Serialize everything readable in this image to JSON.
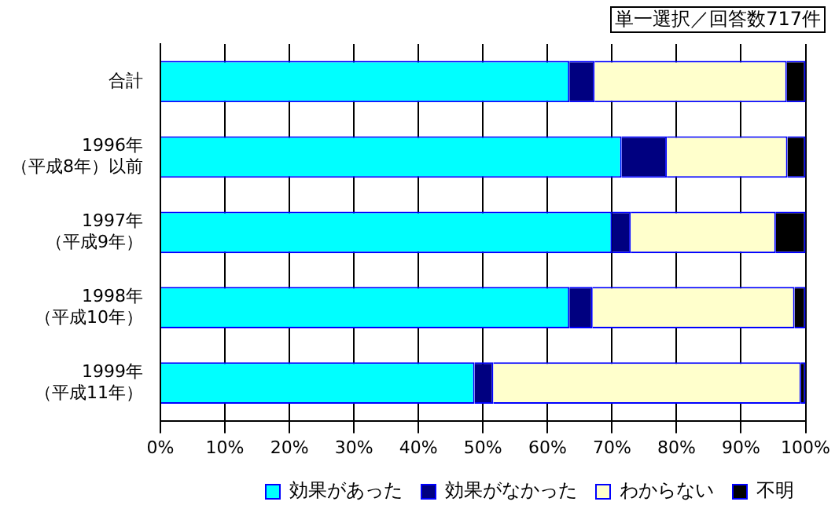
{
  "chart_data": {
    "type": "bar",
    "orientation": "horizontal",
    "stacked": true,
    "annotations": [
      "単一選択／回答数717件"
    ],
    "categories": [
      "合計",
      "1996年（平成8年）以前",
      "1997年（平成9年）",
      "1998年（平成10年）",
      "1999年（平成11年）"
    ],
    "series": [
      {
        "name": "効果があった",
        "color": "#00ffff",
        "values": [
          63.4,
          71.5,
          70,
          63.4,
          48.7
        ]
      },
      {
        "name": "効果がなかった",
        "color": "#000080",
        "values": [
          3.9,
          7,
          2.9,
          3.6,
          2.9
        ]
      },
      {
        "name": "わからない",
        "color": "#ffffcc",
        "values": [
          29.8,
          18.7,
          22.5,
          31.3,
          47.7
        ]
      },
      {
        "name": "不明",
        "color": "#000000",
        "values": [
          2.9,
          2.8,
          4.6,
          1.7,
          0.7
        ]
      }
    ],
    "xlim": [
      0,
      100
    ],
    "xticks": [
      {
        "value": 0,
        "label": "0%"
      },
      {
        "value": 10,
        "label": "10%"
      },
      {
        "value": 20,
        "label": "20%"
      },
      {
        "value": 30,
        "label": "30%"
      },
      {
        "value": 40,
        "label": "40%"
      },
      {
        "value": 50,
        "label": "50%"
      },
      {
        "value": 60,
        "label": "60%"
      },
      {
        "value": 70,
        "label": "70%"
      },
      {
        "value": 80,
        "label": "80%"
      },
      {
        "value": 90,
        "label": "90%"
      },
      {
        "value": 100,
        "label": "100%"
      }
    ],
    "grid": "x",
    "legend": "bottom right"
  }
}
